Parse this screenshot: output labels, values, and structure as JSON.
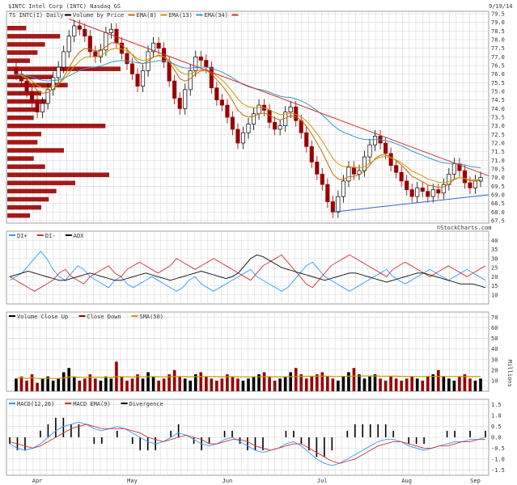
{
  "chart_data": [
    {
      "panel": "price",
      "type": "candlestick",
      "header": "$INTC Intel Corp (INTC) Nasdaq GS",
      "title": "TS INTC(I) Daily",
      "date": "9/19/14",
      "legend": [
        {
          "name": "Volume by Price",
          "color": "#000000"
        },
        {
          "name": "EMA(8)",
          "color": "#cc6600"
        },
        {
          "name": "EMA(13)",
          "color": "#cc9900"
        },
        {
          "name": "EMA(34)",
          "color": "#3399cc"
        },
        {
          "name": "",
          "color": "#cc3333"
        }
      ],
      "yticks": [
        "79.5",
        "79.0",
        "78.5",
        "78.0",
        "77.5",
        "77.0",
        "76.5",
        "76.0",
        "75.5",
        "75.0",
        "74.5",
        "74.0",
        "73.5",
        "73.0",
        "72.5",
        "72.0",
        "71.5",
        "71.0",
        "70.5",
        "70.0",
        "69.5",
        "69.0",
        "68.5",
        "68.0",
        "67.5"
      ],
      "ylim": [
        67.5,
        79.5
      ],
      "xticks": [
        "Apr",
        "May",
        "Jun",
        "Jul",
        "Aug",
        "Sep"
      ],
      "watermark": "©StockCharts.com",
      "closes": [
        76.0,
        75.6,
        75.0,
        74.4,
        73.8,
        74.3,
        75.1,
        75.8,
        76.4,
        77.3,
        78.2,
        78.8,
        78.6,
        78.2,
        77.3,
        77.0,
        77.4,
        78.4,
        78.6,
        77.8,
        77.2,
        76.6,
        76.0,
        75.3,
        76.2,
        77.3,
        77.8,
        77.5,
        76.7,
        75.6,
        74.6,
        74.0,
        75.1,
        76.2,
        77.0,
        76.8,
        76.4,
        75.2,
        74.5,
        74.2,
        73.5,
        72.8,
        72.0,
        72.6,
        73.1,
        73.7,
        74.2,
        73.9,
        73.2,
        72.8,
        73.0,
        73.8,
        74.1,
        73.3,
        72.6,
        71.8,
        70.9,
        70.2,
        69.6,
        68.6,
        68.0,
        68.9,
        69.8,
        70.6,
        70.2,
        70.4,
        71.2,
        71.9,
        72.4,
        72.0,
        71.4,
        70.7,
        70.3,
        69.8,
        69.3,
        68.9,
        69.4,
        69.2,
        68.9,
        69.3,
        69.1,
        69.6,
        70.2,
        70.8,
        70.4,
        69.7,
        69.4,
        69.8,
        70.0
      ],
      "volume_by_price": [
        5,
        14,
        10,
        8,
        6,
        30,
        12,
        16,
        9,
        11,
        8,
        7,
        26,
        9,
        8,
        15,
        7,
        10,
        27,
        18,
        13,
        11,
        9,
        6
      ],
      "resistance_line": {
        "start": 79.2,
        "end": 70.1
      },
      "support_line": {
        "start": 68.0,
        "end": 69.0
      }
    },
    {
      "panel": "adx",
      "type": "line",
      "legend": [
        {
          "name": "DI+",
          "color": "#3399ff"
        },
        {
          "name": "DI-",
          "color": "#cc3333"
        },
        {
          "name": "ADX",
          "color": "#000000"
        }
      ],
      "yticks": [
        "40",
        "35",
        "30",
        "25",
        "20",
        "15",
        "10"
      ],
      "ylim": [
        5,
        45
      ],
      "series": [
        {
          "name": "DI+",
          "values": [
            18,
            20,
            22,
            26,
            30,
            34,
            30,
            24,
            20,
            18,
            22,
            26,
            24,
            20,
            18,
            16,
            14,
            18,
            20,
            16,
            14,
            16,
            18,
            20,
            18,
            16,
            14,
            12,
            14,
            18,
            20,
            16,
            14,
            12,
            14,
            16,
            18,
            20,
            22,
            24,
            20,
            18,
            16,
            14,
            12,
            14,
            18,
            22,
            26,
            28,
            24,
            20,
            18,
            16,
            14,
            12,
            14,
            16,
            18,
            20,
            22,
            24,
            20,
            18,
            16,
            18,
            20,
            22,
            24,
            22,
            20,
            18,
            20,
            22,
            24,
            22,
            20,
            18
          ]
        },
        {
          "name": "DI-",
          "values": [
            20,
            18,
            16,
            14,
            12,
            14,
            16,
            18,
            22,
            24,
            20,
            18,
            16,
            20,
            22,
            24,
            26,
            22,
            20,
            24,
            26,
            28,
            26,
            24,
            22,
            24,
            26,
            30,
            28,
            26,
            24,
            26,
            28,
            30,
            28,
            26,
            24,
            22,
            20,
            18,
            22,
            26,
            28,
            30,
            32,
            28,
            24,
            20,
            16,
            14,
            18,
            22,
            26,
            28,
            30,
            32,
            30,
            28,
            26,
            24,
            22,
            20,
            24,
            26,
            28,
            26,
            24,
            22,
            20,
            22,
            24,
            26,
            24,
            22,
            20,
            22,
            24,
            26
          ]
        },
        {
          "name": "ADX",
          "values": [
            20,
            21,
            22,
            23,
            22,
            21,
            20,
            19,
            18,
            18,
            19,
            20,
            21,
            22,
            21,
            20,
            19,
            18,
            18,
            19,
            20,
            21,
            22,
            21,
            20,
            19,
            18,
            19,
            20,
            21,
            22,
            23,
            22,
            21,
            20,
            19,
            20,
            22,
            26,
            30,
            32,
            31,
            29,
            27,
            25,
            24,
            23,
            22,
            21,
            20,
            19,
            18,
            19,
            20,
            21,
            22,
            22,
            21,
            20,
            19,
            18,
            17,
            18,
            19,
            20,
            21,
            22,
            22,
            21,
            20,
            19,
            18,
            17,
            16,
            16,
            16,
            15,
            14
          ]
        }
      ]
    },
    {
      "panel": "volume",
      "type": "bar",
      "legend": [
        {
          "name": "Volume Close Up",
          "color": "#000000"
        },
        {
          "name": "Close Down",
          "color": "#990000"
        },
        {
          "name": "SMA(50)",
          "color": "#cc9900"
        }
      ],
      "yticks": [
        "70",
        "60",
        "50",
        "40",
        "30",
        "20",
        "10"
      ],
      "ylim": [
        0,
        75
      ],
      "ylabel": "Millions",
      "values": [
        12,
        14,
        10,
        16,
        8,
        12,
        14,
        10,
        12,
        18,
        22,
        14,
        10,
        12,
        16,
        12,
        10,
        14,
        12,
        28,
        14,
        10,
        12,
        16,
        12,
        18,
        14,
        10,
        12,
        16,
        20,
        14,
        12,
        10,
        16,
        18,
        14,
        12,
        10,
        12,
        16,
        14,
        12,
        10,
        12,
        14,
        16,
        18,
        14,
        10,
        12,
        14,
        18,
        22,
        16,
        12,
        14,
        16,
        18,
        14,
        12,
        10,
        14,
        18,
        22,
        16,
        12,
        14,
        16,
        12,
        10,
        14,
        12,
        10,
        12,
        14,
        12,
        10,
        14,
        16,
        20,
        14,
        12,
        10,
        14,
        16,
        12,
        10,
        12
      ]
    },
    {
      "panel": "macd",
      "type": "line",
      "legend": [
        {
          "name": "MACD(12,26)",
          "color": "#3399ff"
        },
        {
          "name": "MACD EMA(9)",
          "color": "#cc3333"
        },
        {
          "name": "Divergence",
          "color": "#000000"
        }
      ],
      "yticks": [
        "1.5",
        "1.0",
        "0.5",
        "0.0",
        "-0.5",
        "-1.0",
        "-1.5"
      ],
      "ylim": [
        -1.75,
        1.75
      ],
      "series": [
        {
          "name": "MACD(12,26)",
          "values": [
            -0.3,
            -0.5,
            -0.6,
            -0.5,
            -0.3,
            0.0,
            0.3,
            0.5,
            0.6,
            0.7,
            0.6,
            0.4,
            0.3,
            0.4,
            0.5,
            0.4,
            0.2,
            0.0,
            -0.2,
            -0.3,
            -0.2,
            0.0,
            0.2,
            0.1,
            -0.1,
            -0.3,
            -0.4,
            -0.3,
            -0.1,
            0.0,
            -0.2,
            -0.4,
            -0.6,
            -0.7,
            -0.6,
            -0.5,
            -0.3,
            -0.2,
            -0.4,
            -0.7,
            -1.0,
            -1.2,
            -1.3,
            -1.2,
            -1.0,
            -0.8,
            -0.6,
            -0.4,
            -0.2,
            -0.1,
            -0.1,
            -0.2,
            -0.4,
            -0.5,
            -0.6,
            -0.5,
            -0.4,
            -0.3,
            -0.2,
            -0.2,
            -0.1,
            -0.1,
            0.0
          ]
        },
        {
          "name": "MACD EMA(9)",
          "values": [
            -0.2,
            -0.3,
            -0.4,
            -0.5,
            -0.4,
            -0.2,
            0.0,
            0.2,
            0.4,
            0.5,
            0.6,
            0.5,
            0.4,
            0.4,
            0.4,
            0.4,
            0.3,
            0.2,
            0.0,
            -0.1,
            -0.2,
            -0.1,
            0.0,
            0.1,
            0.0,
            -0.1,
            -0.3,
            -0.3,
            -0.2,
            -0.1,
            -0.1,
            -0.2,
            -0.4,
            -0.5,
            -0.6,
            -0.5,
            -0.4,
            -0.3,
            -0.3,
            -0.5,
            -0.7,
            -0.9,
            -1.1,
            -1.2,
            -1.1,
            -1.0,
            -0.8,
            -0.6,
            -0.4,
            -0.3,
            -0.2,
            -0.2,
            -0.3,
            -0.4,
            -0.5,
            -0.5,
            -0.4,
            -0.4,
            -0.3,
            -0.2,
            -0.2,
            -0.1,
            -0.1
          ]
        }
      ]
    }
  ]
}
